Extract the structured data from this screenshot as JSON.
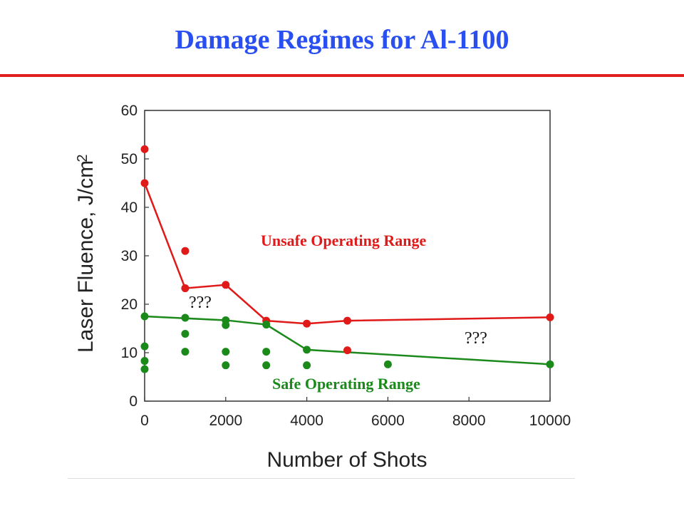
{
  "slide": {
    "title": "Damage Regimes for Al-1100"
  },
  "colors": {
    "title": "#2a4ff0",
    "rule": "#e02020",
    "unsafe": "#e01919",
    "safe": "#1b8a1b"
  },
  "chart_data": {
    "type": "scatter",
    "xlabel": "Number of Shots",
    "ylabel": "Laser Fluence, J/cm",
    "ylabel_superscript": "2",
    "x_ticks": [
      "0",
      "2000",
      "4000",
      "6000",
      "8000",
      "10000"
    ],
    "y_ticks": [
      "0",
      "10",
      "20",
      "30",
      "40",
      "50",
      "60"
    ],
    "xlim": [
      0,
      10000
    ],
    "ylim": [
      0,
      60
    ],
    "grid": false,
    "x_scale_note": "non-uniform: 8000 to 10000 spans the same width as 6000 to 8000 ticks... axis ticks evenly spaced as printed",
    "series": [
      {
        "key": "unsafe_points",
        "color": "#e01919",
        "points": [
          [
            0,
            52
          ],
          [
            0,
            45
          ],
          [
            1000,
            31
          ],
          [
            1000,
            23.3
          ],
          [
            2000,
            24
          ],
          [
            3000,
            16.6
          ],
          [
            4000,
            16
          ],
          [
            5000,
            16.6
          ],
          [
            5000,
            10.5
          ],
          [
            10000,
            17.3
          ]
        ]
      },
      {
        "key": "unsafe_boundary",
        "color": "#e01919",
        "line": [
          [
            0,
            45
          ],
          [
            1000,
            23.3
          ],
          [
            2000,
            24
          ],
          [
            3000,
            16.6
          ],
          [
            4000,
            16
          ],
          [
            5000,
            16.6
          ],
          [
            10000,
            17.3
          ]
        ]
      },
      {
        "key": "safe_points",
        "color": "#1b8a1b",
        "points": [
          [
            0,
            17.5
          ],
          [
            0,
            11.3
          ],
          [
            0,
            8.3
          ],
          [
            0,
            6.6
          ],
          [
            1000,
            17.2
          ],
          [
            1000,
            13.9
          ],
          [
            1000,
            10.2
          ],
          [
            2000,
            16.7
          ],
          [
            2000,
            15.7
          ],
          [
            2000,
            10.2
          ],
          [
            2000,
            7.4
          ],
          [
            3000,
            15.8
          ],
          [
            3000,
            10.2
          ],
          [
            3000,
            7.4
          ],
          [
            4000,
            10.6
          ],
          [
            4000,
            7.4
          ],
          [
            6000,
            7.6
          ],
          [
            10000,
            7.6
          ]
        ]
      },
      {
        "key": "safe_boundary",
        "color": "#1b8a1b",
        "line": [
          [
            0,
            17.5
          ],
          [
            2000,
            16.7
          ],
          [
            3000,
            15.8
          ],
          [
            4000,
            10.6
          ],
          [
            10000,
            7.6
          ]
        ]
      }
    ],
    "annotations": {
      "unsafe": "Unsafe Operating Range",
      "safe": "Safe Operating Range",
      "unknown_1": "???",
      "unknown_2": "???"
    }
  }
}
